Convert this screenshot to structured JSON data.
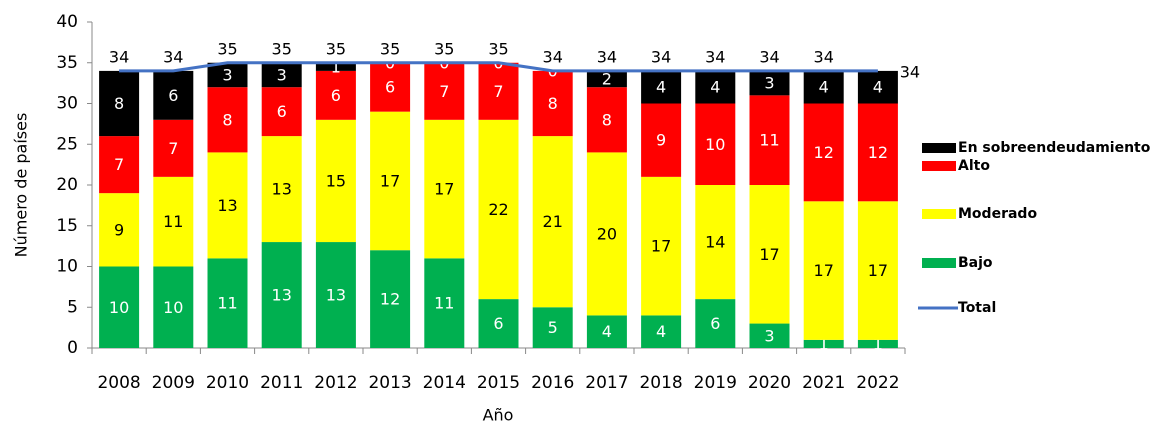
{
  "chart_data": {
    "type": "bar",
    "stacked": true,
    "x_label": "Año",
    "y_label": "Número de países",
    "categories": [
      "2008",
      "2009",
      "2010",
      "2011",
      "2012",
      "2013",
      "2014",
      "2015",
      "2016",
      "2017",
      "2018",
      "2019",
      "2020",
      "2021",
      "2022"
    ],
    "series": [
      {
        "name": "Bajo",
        "color": "#00b050",
        "values": [
          10,
          10,
          11,
          13,
          13,
          12,
          11,
          6,
          5,
          4,
          4,
          6,
          3,
          1,
          1
        ]
      },
      {
        "name": "Moderado",
        "color": "#ffff00",
        "values": [
          9,
          11,
          13,
          13,
          15,
          17,
          17,
          22,
          21,
          20,
          17,
          14,
          17,
          17,
          17
        ]
      },
      {
        "name": "Alto",
        "color": "#ff0000",
        "values": [
          7,
          7,
          8,
          6,
          6,
          6,
          7,
          7,
          8,
          8,
          9,
          10,
          11,
          12,
          12
        ]
      },
      {
        "name": "En sobreendeudamiento",
        "color": "#000000",
        "values": [
          8,
          6,
          3,
          3,
          1,
          0,
          0,
          0,
          0,
          2,
          4,
          4,
          3,
          4,
          4
        ]
      },
      {
        "name": "Total",
        "type": "line",
        "color": "#4472c4",
        "values": [
          34,
          34,
          35,
          35,
          35,
          35,
          35,
          35,
          34,
          34,
          34,
          34,
          34,
          34,
          34
        ]
      }
    ],
    "ylim": [
      0,
      40
    ],
    "yticks": [
      0,
      5,
      10,
      15,
      20,
      25,
      30,
      35,
      40
    ],
    "legend": "right"
  }
}
